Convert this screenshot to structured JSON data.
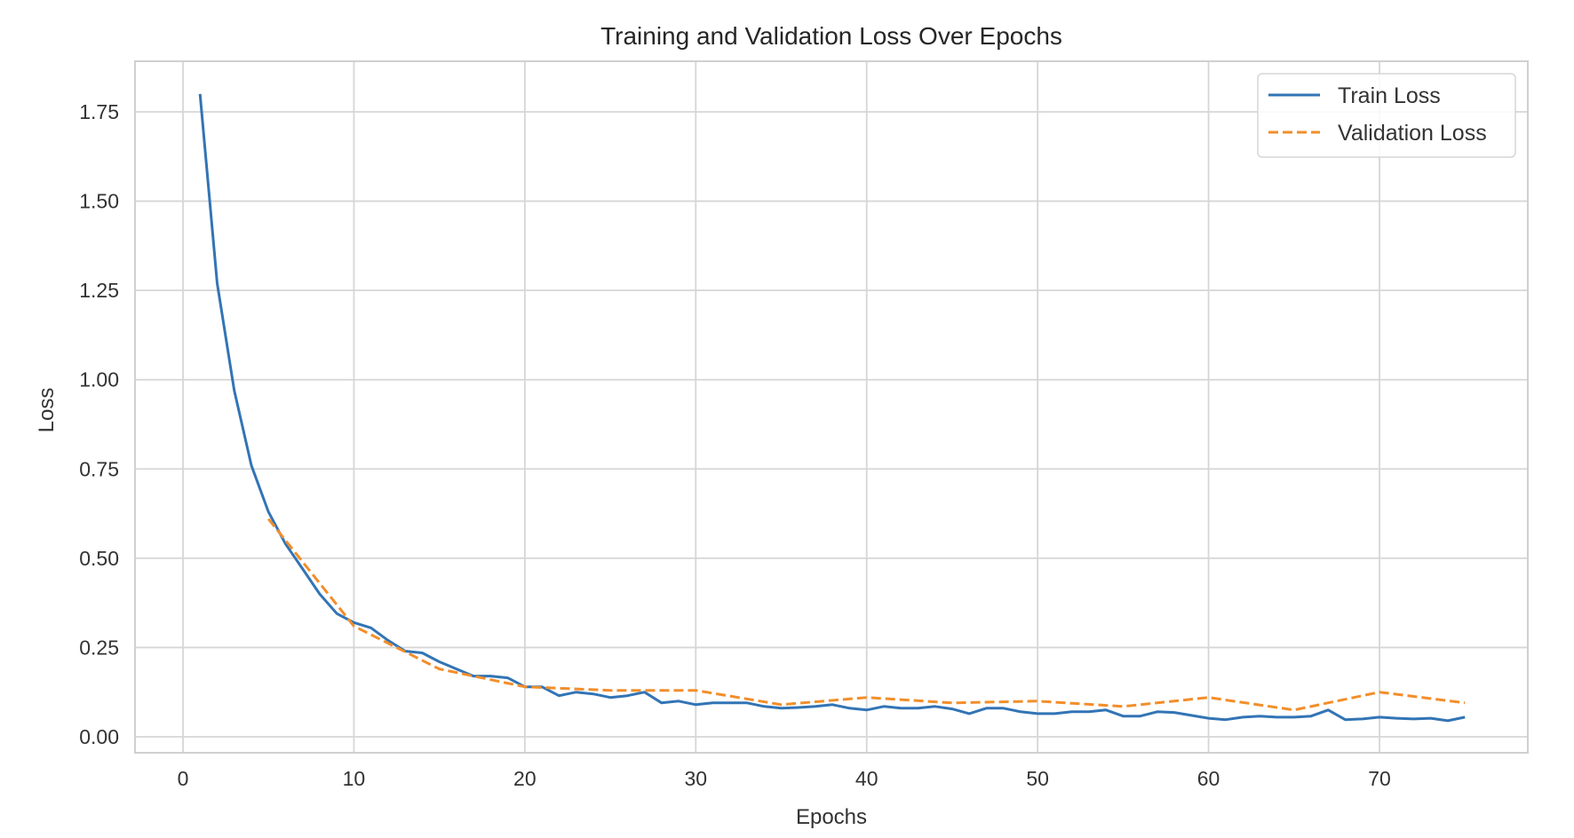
{
  "chart_data": {
    "type": "line",
    "title": "Training and Validation Loss Over Epochs",
    "xlabel": "Epochs",
    "ylabel": "Loss",
    "xlim": [
      -3,
      78
    ],
    "ylim": [
      -0.045,
      1.9
    ],
    "grid": true,
    "legend_placement": "top-right",
    "xticks": [
      0,
      10,
      20,
      30,
      40,
      50,
      60,
      70
    ],
    "xtick_labels": [
      "0",
      "10",
      "20",
      "30",
      "40",
      "50",
      "60",
      "70"
    ],
    "yticks": [
      0,
      0.25,
      0.5,
      0.75,
      1.0,
      1.25,
      1.5,
      1.75
    ],
    "ytick_labels": [
      "0.00",
      "0.25",
      "0.50",
      "0.75",
      "1.00",
      "1.25",
      "1.50",
      "1.75"
    ],
    "series": [
      {
        "name": "Train Loss",
        "color": "#3274b5",
        "style": "solid",
        "x": [
          1,
          2,
          3,
          4,
          5,
          6,
          7,
          8,
          9,
          10,
          11,
          12,
          13,
          14,
          15,
          16,
          17,
          18,
          19,
          20,
          21,
          22,
          23,
          24,
          25,
          26,
          27,
          28,
          29,
          30,
          31,
          32,
          33,
          34,
          35,
          36,
          37,
          38,
          39,
          40,
          41,
          42,
          43,
          44,
          45,
          46,
          47,
          48,
          49,
          50,
          51,
          52,
          53,
          54,
          55,
          56,
          57,
          58,
          59,
          60,
          61,
          62,
          63,
          64,
          65,
          66,
          67,
          68,
          69,
          70,
          71,
          72,
          73,
          74,
          75
        ],
        "values": [
          1.8,
          1.27,
          0.97,
          0.76,
          0.63,
          0.54,
          0.47,
          0.4,
          0.345,
          0.32,
          0.305,
          0.27,
          0.24,
          0.235,
          0.21,
          0.19,
          0.17,
          0.17,
          0.165,
          0.14,
          0.14,
          0.115,
          0.125,
          0.12,
          0.11,
          0.115,
          0.125,
          0.095,
          0.1,
          0.09,
          0.095,
          0.095,
          0.095,
          0.085,
          0.08,
          0.082,
          0.085,
          0.09,
          0.08,
          0.075,
          0.085,
          0.08,
          0.08,
          0.085,
          0.078,
          0.065,
          0.08,
          0.08,
          0.07,
          0.065,
          0.065,
          0.07,
          0.07,
          0.075,
          0.058,
          0.058,
          0.07,
          0.068,
          0.06,
          0.052,
          0.048,
          0.055,
          0.058,
          0.055,
          0.055,
          0.058,
          0.075,
          0.048,
          0.05,
          0.055,
          0.052,
          0.05,
          0.052,
          0.045,
          0.055
        ]
      },
      {
        "name": "Validation Loss",
        "color": "#f28e2b",
        "style": "dashed",
        "x": [
          5,
          10,
          15,
          20,
          25,
          30,
          35,
          40,
          45,
          50,
          55,
          60,
          65,
          70,
          75
        ],
        "values": [
          0.61,
          0.31,
          0.19,
          0.14,
          0.13,
          0.13,
          0.09,
          0.11,
          0.095,
          0.1,
          0.085,
          0.11,
          0.075,
          0.125,
          0.095
        ]
      }
    ]
  }
}
